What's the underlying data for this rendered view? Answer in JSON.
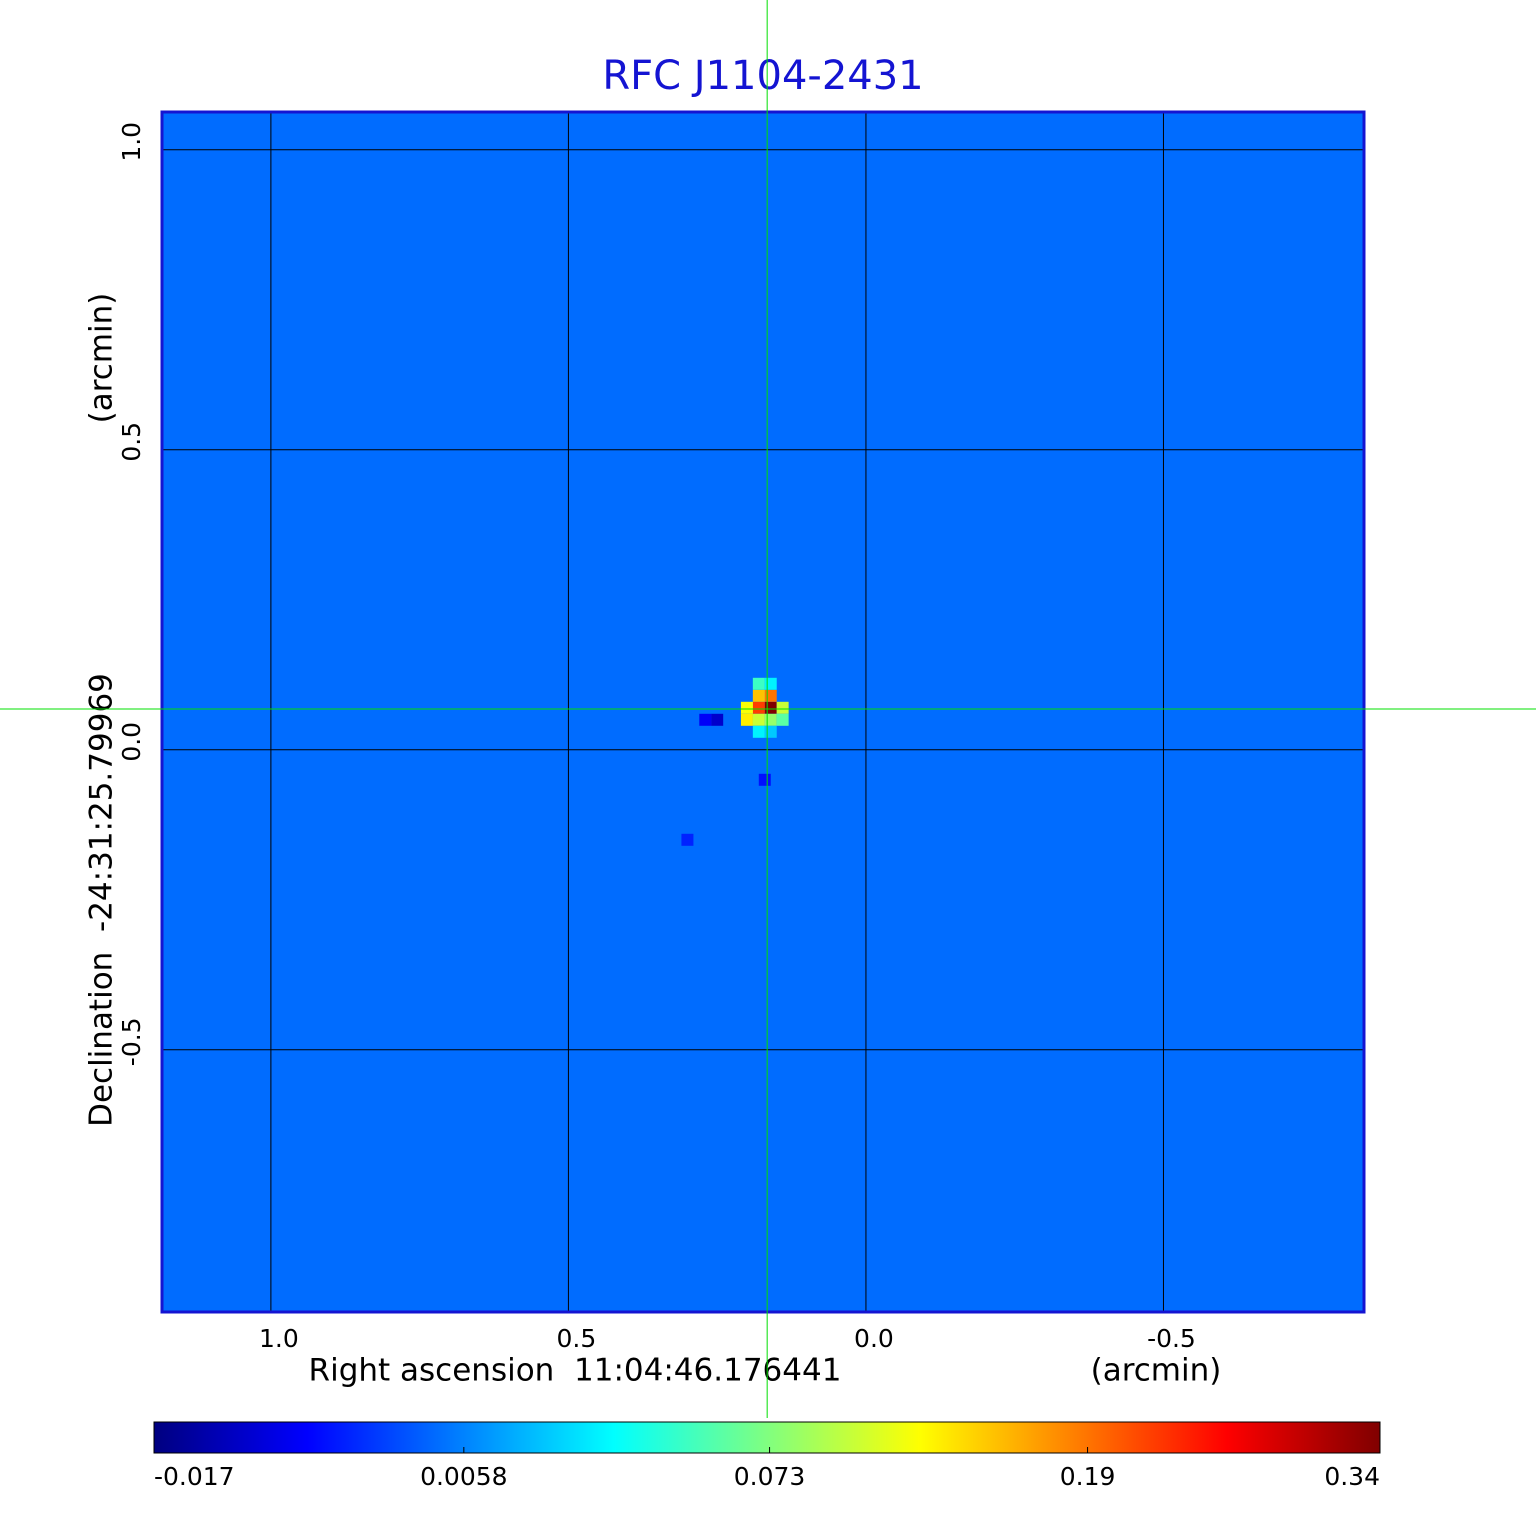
{
  "chart_data": {
    "type": "image",
    "title": "RFC J1104-2431",
    "xlabel": "Right ascension  11:04:46.176441",
    "xunit": "(arcmin)",
    "ylabel": "Declination  -24:31:25.79969",
    "yunit": "(arcmin)",
    "xlim": [
      1.183,
      -0.837
    ],
    "ylim": [
      -0.937,
      1.063
    ],
    "xticks": [
      {
        "value": 1,
        "label": "1.0"
      },
      0.5,
      {
        "value": 0,
        "label": "0.0"
      },
      -0.5
    ],
    "yticks": [
      {
        "value": 1,
        "label": "1.0"
      },
      0.5,
      {
        "value": 0,
        "label": "0.0"
      },
      -0.5
    ],
    "grid": true,
    "frame_color": "#1414d2",
    "title_color": "#1414d2",
    "background": 0.002,
    "cells": [
      [
        0.16,
        0.07,
        0.34
      ],
      [
        0.18,
        0.07,
        0.22
      ],
      [
        0.16,
        0.09,
        0.19
      ],
      [
        0.18,
        0.09,
        0.15
      ],
      [
        0.2,
        0.07,
        0.12
      ],
      [
        0.14,
        0.07,
        0.1
      ],
      [
        0.2,
        0.05,
        0.13
      ],
      [
        0.18,
        0.05,
        0.1
      ],
      [
        0.16,
        0.05,
        0.08
      ],
      [
        0.14,
        0.05,
        0.06
      ],
      [
        0.18,
        0.11,
        0.05
      ],
      [
        0.16,
        0.11,
        0.03
      ],
      [
        0.18,
        0.03,
        0.03
      ],
      [
        0.16,
        0.03,
        0.02
      ],
      [
        0.25,
        0.05,
        -0.015
      ],
      [
        0.27,
        0.05,
        -0.012
      ],
      [
        0.17,
        -0.05,
        -0.01
      ],
      [
        0.3,
        -0.15,
        -0.008
      ]
    ],
    "marker": {
      "x": 0.166,
      "y": 0.068,
      "color": "#00e000"
    },
    "colorbar": {
      "scale": "sqrt",
      "lim": [
        -0.017,
        0.34
      ],
      "ticks": [
        -0.017,
        0.0058,
        0.073,
        0.19,
        0.34
      ]
    }
  }
}
